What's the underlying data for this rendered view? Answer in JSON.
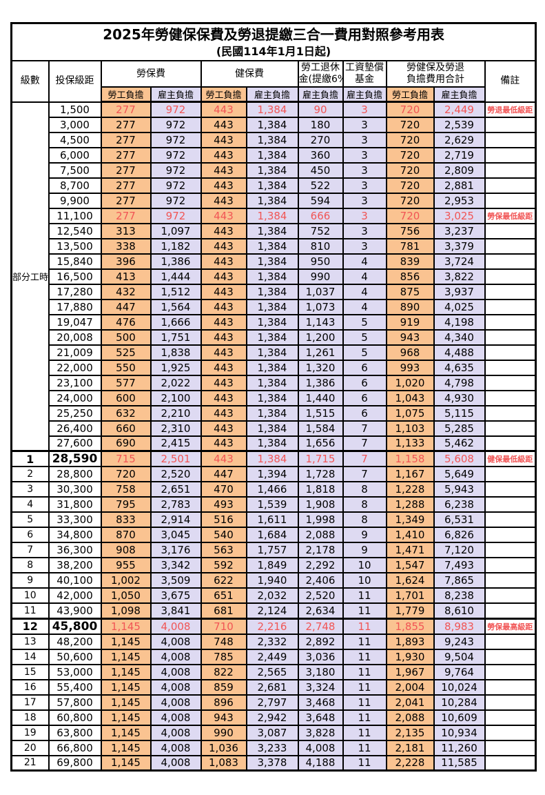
{
  "title": "2025年勞健保保費及勞退提繳三合一費用對照參考用表",
  "subtitle": "(民國114年1月1日起)",
  "colors": {
    "employee_bg": "#FAC391",
    "employer_bg": "#DEDAF2",
    "highlight": "#F15555",
    "border_color": "#000000"
  },
  "header": {
    "level": "級數",
    "bracket": "投保級距",
    "labor_group": "勞保費",
    "health_group": "健保費",
    "pension_line1": "勞工退休",
    "pension_line2": "金(提繳6%)",
    "wagefund_line1": "工資墊償",
    "wagefund_line2": "基金",
    "total_line1": "勞健保及勞退",
    "total_line2": "負擔費用合計",
    "remark": "備註",
    "employee": "勞工負擔",
    "employer": "雇主負擔"
  },
  "part_time_label": "部分工時",
  "part_time_span": 23,
  "rows": [
    {
      "level": "",
      "bracket": "1,500",
      "v": [
        "277",
        "972",
        "443",
        "1,384",
        "90",
        "3",
        "720",
        "2,449"
      ],
      "remark": "勞退最低級距",
      "red": true,
      "major": false
    },
    {
      "level": "",
      "bracket": "3,000",
      "v": [
        "277",
        "972",
        "443",
        "1,384",
        "180",
        "3",
        "720",
        "2,539"
      ],
      "remark": "",
      "red": false,
      "major": false
    },
    {
      "level": "",
      "bracket": "4,500",
      "v": [
        "277",
        "972",
        "443",
        "1,384",
        "270",
        "3",
        "720",
        "2,629"
      ],
      "remark": "",
      "red": false,
      "major": false
    },
    {
      "level": "",
      "bracket": "6,000",
      "v": [
        "277",
        "972",
        "443",
        "1,384",
        "360",
        "3",
        "720",
        "2,719"
      ],
      "remark": "",
      "red": false,
      "major": false
    },
    {
      "level": "",
      "bracket": "7,500",
      "v": [
        "277",
        "972",
        "443",
        "1,384",
        "450",
        "3",
        "720",
        "2,809"
      ],
      "remark": "",
      "red": false,
      "major": false
    },
    {
      "level": "",
      "bracket": "8,700",
      "v": [
        "277",
        "972",
        "443",
        "1,384",
        "522",
        "3",
        "720",
        "2,881"
      ],
      "remark": "",
      "red": false,
      "major": false
    },
    {
      "level": "",
      "bracket": "9,900",
      "v": [
        "277",
        "972",
        "443",
        "1,384",
        "594",
        "3",
        "720",
        "2,953"
      ],
      "remark": "",
      "red": false,
      "major": false
    },
    {
      "level": "",
      "bracket": "11,100",
      "v": [
        "277",
        "972",
        "443",
        "1,384",
        "666",
        "3",
        "720",
        "3,025"
      ],
      "remark": "勞保最低級距",
      "red": true,
      "major": false
    },
    {
      "level": "",
      "bracket": "12,540",
      "v": [
        "313",
        "1,097",
        "443",
        "1,384",
        "752",
        "3",
        "756",
        "3,237"
      ],
      "remark": "",
      "red": false,
      "major": false
    },
    {
      "level": "",
      "bracket": "13,500",
      "v": [
        "338",
        "1,182",
        "443",
        "1,384",
        "810",
        "3",
        "781",
        "3,379"
      ],
      "remark": "",
      "red": false,
      "major": false
    },
    {
      "level": "",
      "bracket": "15,840",
      "v": [
        "396",
        "1,386",
        "443",
        "1,384",
        "950",
        "4",
        "839",
        "3,724"
      ],
      "remark": "",
      "red": false,
      "major": false
    },
    {
      "level": "",
      "bracket": "16,500",
      "v": [
        "413",
        "1,444",
        "443",
        "1,384",
        "990",
        "4",
        "856",
        "3,822"
      ],
      "remark": "",
      "red": false,
      "major": false
    },
    {
      "level": "",
      "bracket": "17,280",
      "v": [
        "432",
        "1,512",
        "443",
        "1,384",
        "1,037",
        "4",
        "875",
        "3,937"
      ],
      "remark": "",
      "red": false,
      "major": false
    },
    {
      "level": "",
      "bracket": "17,880",
      "v": [
        "447",
        "1,564",
        "443",
        "1,384",
        "1,073",
        "4",
        "890",
        "4,025"
      ],
      "remark": "",
      "red": false,
      "major": false
    },
    {
      "level": "",
      "bracket": "19,047",
      "v": [
        "476",
        "1,666",
        "443",
        "1,384",
        "1,143",
        "5",
        "919",
        "4,198"
      ],
      "remark": "",
      "red": false,
      "major": false
    },
    {
      "level": "",
      "bracket": "20,008",
      "v": [
        "500",
        "1,751",
        "443",
        "1,384",
        "1,200",
        "5",
        "943",
        "4,340"
      ],
      "remark": "",
      "red": false,
      "major": false
    },
    {
      "level": "",
      "bracket": "21,009",
      "v": [
        "525",
        "1,838",
        "443",
        "1,384",
        "1,261",
        "5",
        "968",
        "4,488"
      ],
      "remark": "",
      "red": false,
      "major": false
    },
    {
      "level": "",
      "bracket": "22,000",
      "v": [
        "550",
        "1,925",
        "443",
        "1,384",
        "1,320",
        "6",
        "993",
        "4,635"
      ],
      "remark": "",
      "red": false,
      "major": false
    },
    {
      "level": "",
      "bracket": "23,100",
      "v": [
        "577",
        "2,022",
        "443",
        "1,384",
        "1,386",
        "6",
        "1,020",
        "4,798"
      ],
      "remark": "",
      "red": false,
      "major": false
    },
    {
      "level": "",
      "bracket": "24,000",
      "v": [
        "600",
        "2,100",
        "443",
        "1,384",
        "1,440",
        "6",
        "1,043",
        "4,930"
      ],
      "remark": "",
      "red": false,
      "major": false
    },
    {
      "level": "",
      "bracket": "25,250",
      "v": [
        "632",
        "2,210",
        "443",
        "1,384",
        "1,515",
        "6",
        "1,075",
        "5,115"
      ],
      "remark": "",
      "red": false,
      "major": false
    },
    {
      "level": "",
      "bracket": "26,400",
      "v": [
        "660",
        "2,310",
        "443",
        "1,384",
        "1,584",
        "7",
        "1,103",
        "5,285"
      ],
      "remark": "",
      "red": false,
      "major": false
    },
    {
      "level": "",
      "bracket": "27,600",
      "v": [
        "690",
        "2,415",
        "443",
        "1,384",
        "1,656",
        "7",
        "1,133",
        "5,462"
      ],
      "remark": "",
      "red": false,
      "major": false
    },
    {
      "level": "1",
      "bracket": "28,590",
      "v": [
        "715",
        "2,501",
        "443",
        "1,384",
        "1,715",
        "7",
        "1,158",
        "5,608"
      ],
      "remark": "健保最低級距",
      "red": true,
      "major": true
    },
    {
      "level": "2",
      "bracket": "28,800",
      "v": [
        "720",
        "2,520",
        "447",
        "1,394",
        "1,728",
        "7",
        "1,167",
        "5,649"
      ],
      "remark": "",
      "red": false,
      "major": false
    },
    {
      "level": "3",
      "bracket": "30,300",
      "v": [
        "758",
        "2,651",
        "470",
        "1,466",
        "1,818",
        "8",
        "1,228",
        "5,943"
      ],
      "remark": "",
      "red": false,
      "major": false
    },
    {
      "level": "4",
      "bracket": "31,800",
      "v": [
        "795",
        "2,783",
        "493",
        "1,539",
        "1,908",
        "8",
        "1,288",
        "6,238"
      ],
      "remark": "",
      "red": false,
      "major": false
    },
    {
      "level": "5",
      "bracket": "33,300",
      "v": [
        "833",
        "2,914",
        "516",
        "1,611",
        "1,998",
        "8",
        "1,349",
        "6,531"
      ],
      "remark": "",
      "red": false,
      "major": false
    },
    {
      "level": "6",
      "bracket": "34,800",
      "v": [
        "870",
        "3,045",
        "540",
        "1,684",
        "2,088",
        "9",
        "1,410",
        "6,826"
      ],
      "remark": "",
      "red": false,
      "major": false
    },
    {
      "level": "7",
      "bracket": "36,300",
      "v": [
        "908",
        "3,176",
        "563",
        "1,757",
        "2,178",
        "9",
        "1,471",
        "7,120"
      ],
      "remark": "",
      "red": false,
      "major": false
    },
    {
      "level": "8",
      "bracket": "38,200",
      "v": [
        "955",
        "3,342",
        "592",
        "1,849",
        "2,292",
        "10",
        "1,547",
        "7,493"
      ],
      "remark": "",
      "red": false,
      "major": false
    },
    {
      "level": "9",
      "bracket": "40,100",
      "v": [
        "1,002",
        "3,509",
        "622",
        "1,940",
        "2,406",
        "10",
        "1,624",
        "7,865"
      ],
      "remark": "",
      "red": false,
      "major": false
    },
    {
      "level": "10",
      "bracket": "42,000",
      "v": [
        "1,050",
        "3,675",
        "651",
        "2,032",
        "2,520",
        "11",
        "1,701",
        "8,238"
      ],
      "remark": "",
      "red": false,
      "major": false
    },
    {
      "level": "11",
      "bracket": "43,900",
      "v": [
        "1,098",
        "3,841",
        "681",
        "2,124",
        "2,634",
        "11",
        "1,779",
        "8,610"
      ],
      "remark": "",
      "red": false,
      "major": false
    },
    {
      "level": "12",
      "bracket": "45,800",
      "v": [
        "1,145",
        "4,008",
        "710",
        "2,216",
        "2,748",
        "11",
        "1,855",
        "8,983"
      ],
      "remark": "勞保最高級距",
      "red": true,
      "major": true
    },
    {
      "level": "13",
      "bracket": "48,200",
      "v": [
        "1,145",
        "4,008",
        "748",
        "2,332",
        "2,892",
        "11",
        "1,893",
        "9,243"
      ],
      "remark": "",
      "red": false,
      "major": false
    },
    {
      "level": "14",
      "bracket": "50,600",
      "v": [
        "1,145",
        "4,008",
        "785",
        "2,449",
        "3,036",
        "11",
        "1,930",
        "9,504"
      ],
      "remark": "",
      "red": false,
      "major": false
    },
    {
      "level": "15",
      "bracket": "53,000",
      "v": [
        "1,145",
        "4,008",
        "822",
        "2,565",
        "3,180",
        "11",
        "1,967",
        "9,764"
      ],
      "remark": "",
      "red": false,
      "major": false
    },
    {
      "level": "16",
      "bracket": "55,400",
      "v": [
        "1,145",
        "4,008",
        "859",
        "2,681",
        "3,324",
        "11",
        "2,004",
        "10,024"
      ],
      "remark": "",
      "red": false,
      "major": false
    },
    {
      "level": "17",
      "bracket": "57,800",
      "v": [
        "1,145",
        "4,008",
        "896",
        "2,797",
        "3,468",
        "11",
        "2,041",
        "10,284"
      ],
      "remark": "",
      "red": false,
      "major": false
    },
    {
      "level": "18",
      "bracket": "60,800",
      "v": [
        "1,145",
        "4,008",
        "943",
        "2,942",
        "3,648",
        "11",
        "2,088",
        "10,609"
      ],
      "remark": "",
      "red": false,
      "major": false
    },
    {
      "level": "19",
      "bracket": "63,800",
      "v": [
        "1,145",
        "4,008",
        "990",
        "3,087",
        "3,828",
        "11",
        "2,135",
        "10,934"
      ],
      "remark": "",
      "red": false,
      "major": false
    },
    {
      "level": "20",
      "bracket": "66,800",
      "v": [
        "1,145",
        "4,008",
        "1,036",
        "3,233",
        "4,008",
        "11",
        "2,181",
        "11,260"
      ],
      "remark": "",
      "red": false,
      "major": false
    },
    {
      "level": "21",
      "bracket": "69,800",
      "v": [
        "1,145",
        "4,008",
        "1,083",
        "3,378",
        "4,188",
        "11",
        "2,228",
        "11,585"
      ],
      "remark": "",
      "red": false,
      "major": false
    }
  ]
}
